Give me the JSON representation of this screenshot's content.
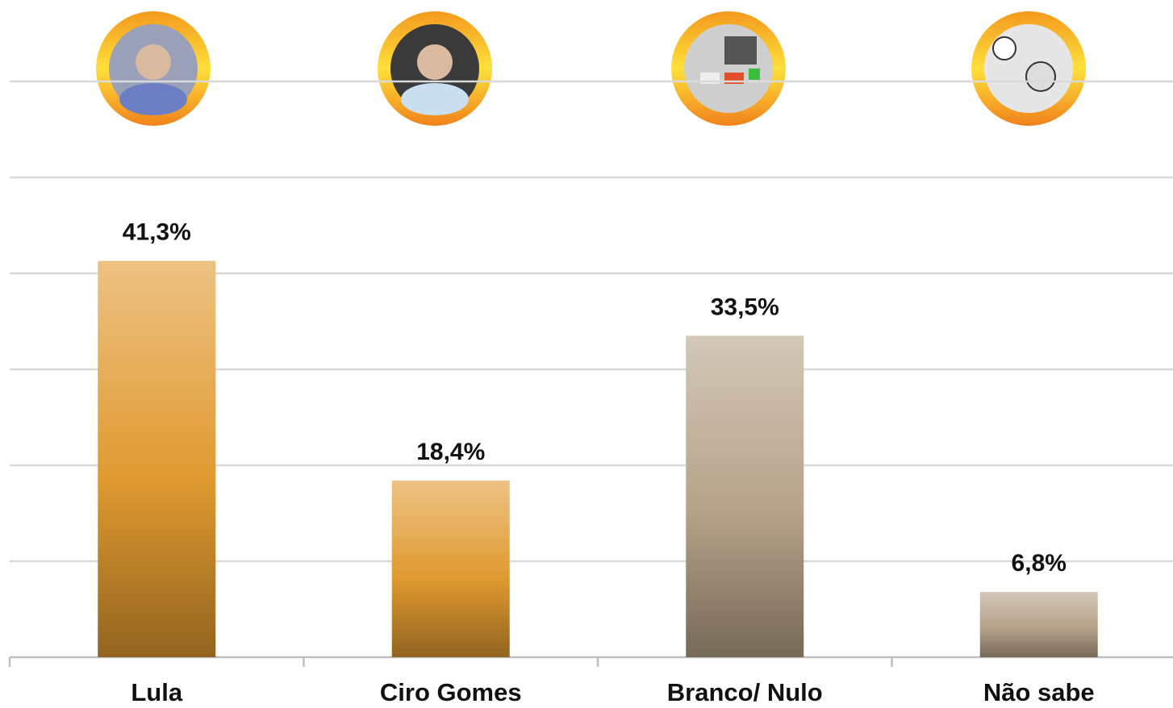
{
  "chart_data": {
    "type": "bar",
    "categories": [
      "Lula",
      "Ciro Gomes",
      "Branco/ Nulo",
      "Não sabe"
    ],
    "values": [
      41.3,
      18.4,
      33.5,
      6.8
    ],
    "value_labels": [
      "41,3%",
      "18,4%",
      "33,5%",
      "6,8%"
    ],
    "colors": [
      "#e09a30",
      "#e09a30",
      "#b5a288",
      "#b5a288"
    ],
    "ylim": [
      0,
      60
    ],
    "yticks": [
      0,
      10,
      20,
      30,
      40,
      50,
      60
    ],
    "grid": true
  }
}
